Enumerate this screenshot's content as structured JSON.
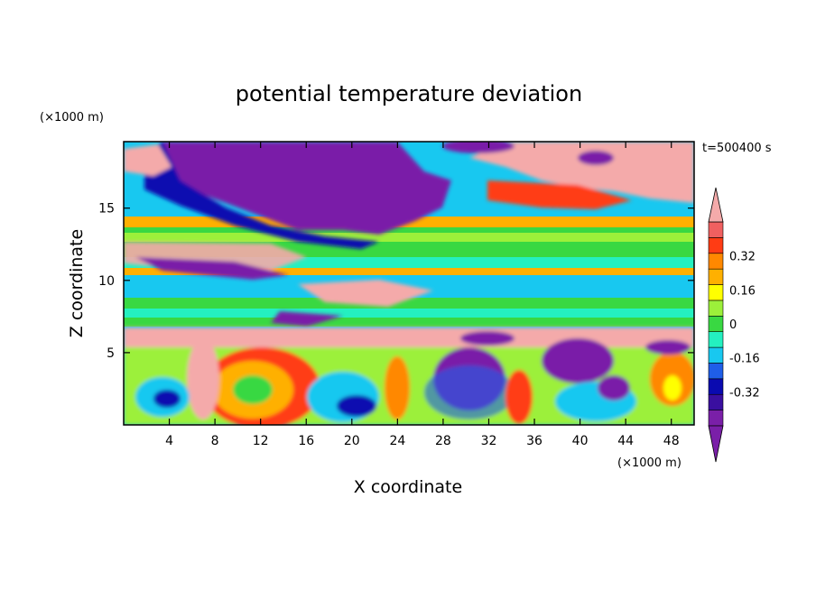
{
  "chart_data": {
    "type": "heatmap",
    "title": "potential temperature deviation",
    "xlabel": "X coordinate",
    "ylabel": "Z coordinate",
    "x_unit": "(×1000 m)",
    "y_unit": "(×1000 m)",
    "time_label": "t=500400 s",
    "xlim": [
      0,
      50
    ],
    "ylim": [
      0,
      19.6
    ],
    "x_ticks": [
      4,
      8,
      12,
      16,
      20,
      24,
      28,
      32,
      36,
      40,
      44,
      48
    ],
    "y_ticks": [
      5,
      10,
      15
    ],
    "colorbar": {
      "min": -0.48,
      "max": 0.48,
      "step": 0.08,
      "labels": [
        "0.32",
        "0.16",
        "0",
        "-0.16",
        "-0.32"
      ],
      "label_values": [
        0.32,
        0.16,
        0,
        -0.16,
        -0.32
      ],
      "colors": [
        "#7a1fa8",
        "#3a0fa0",
        "#0a0ab0",
        "#1f5ee8",
        "#18c8f0",
        "#24f0c0",
        "#39d842",
        "#9cf03a",
        "#ffff00",
        "#ffb000",
        "#ff8800",
        "#ff3c14",
        "#f06060"
      ],
      "over_color": "#f4aaaa",
      "under_color": "#7a1fa8"
    }
  }
}
